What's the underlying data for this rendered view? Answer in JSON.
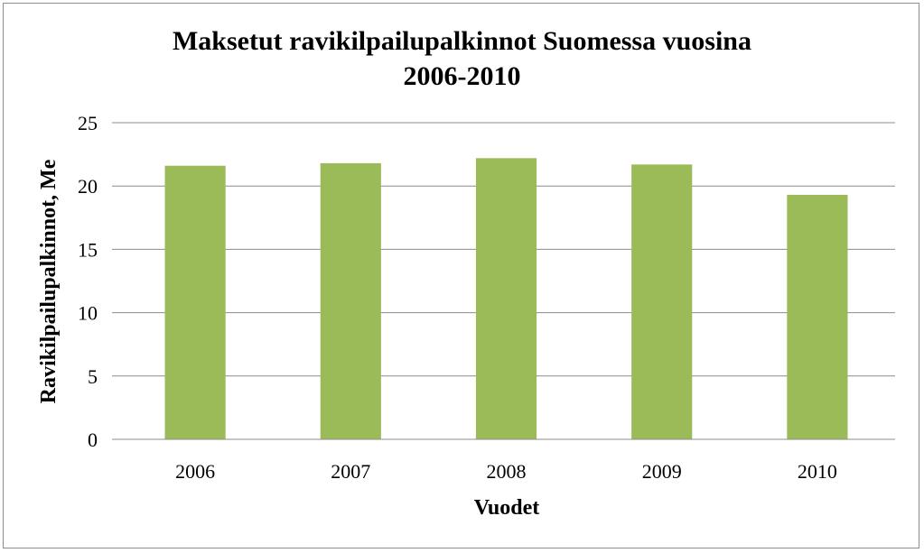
{
  "chart_data": {
    "type": "bar",
    "title_lines": [
      "Maksetut ravikilpailupalkinnot Suomessa vuosina",
      "2006-2010"
    ],
    "xlabel": "Vuodet",
    "ylabel": "Ravikilpailupalkinnot, Me",
    "categories": [
      "2006",
      "2007",
      "2008",
      "2009",
      "2010"
    ],
    "values": [
      21.6,
      21.8,
      22.2,
      21.7,
      19.3
    ],
    "ylim": [
      0,
      25
    ],
    "yticks": [
      "0",
      "5",
      "10",
      "15",
      "20",
      "25"
    ],
    "grid": true,
    "legend": "none",
    "bar_color": "#9bbb59"
  }
}
